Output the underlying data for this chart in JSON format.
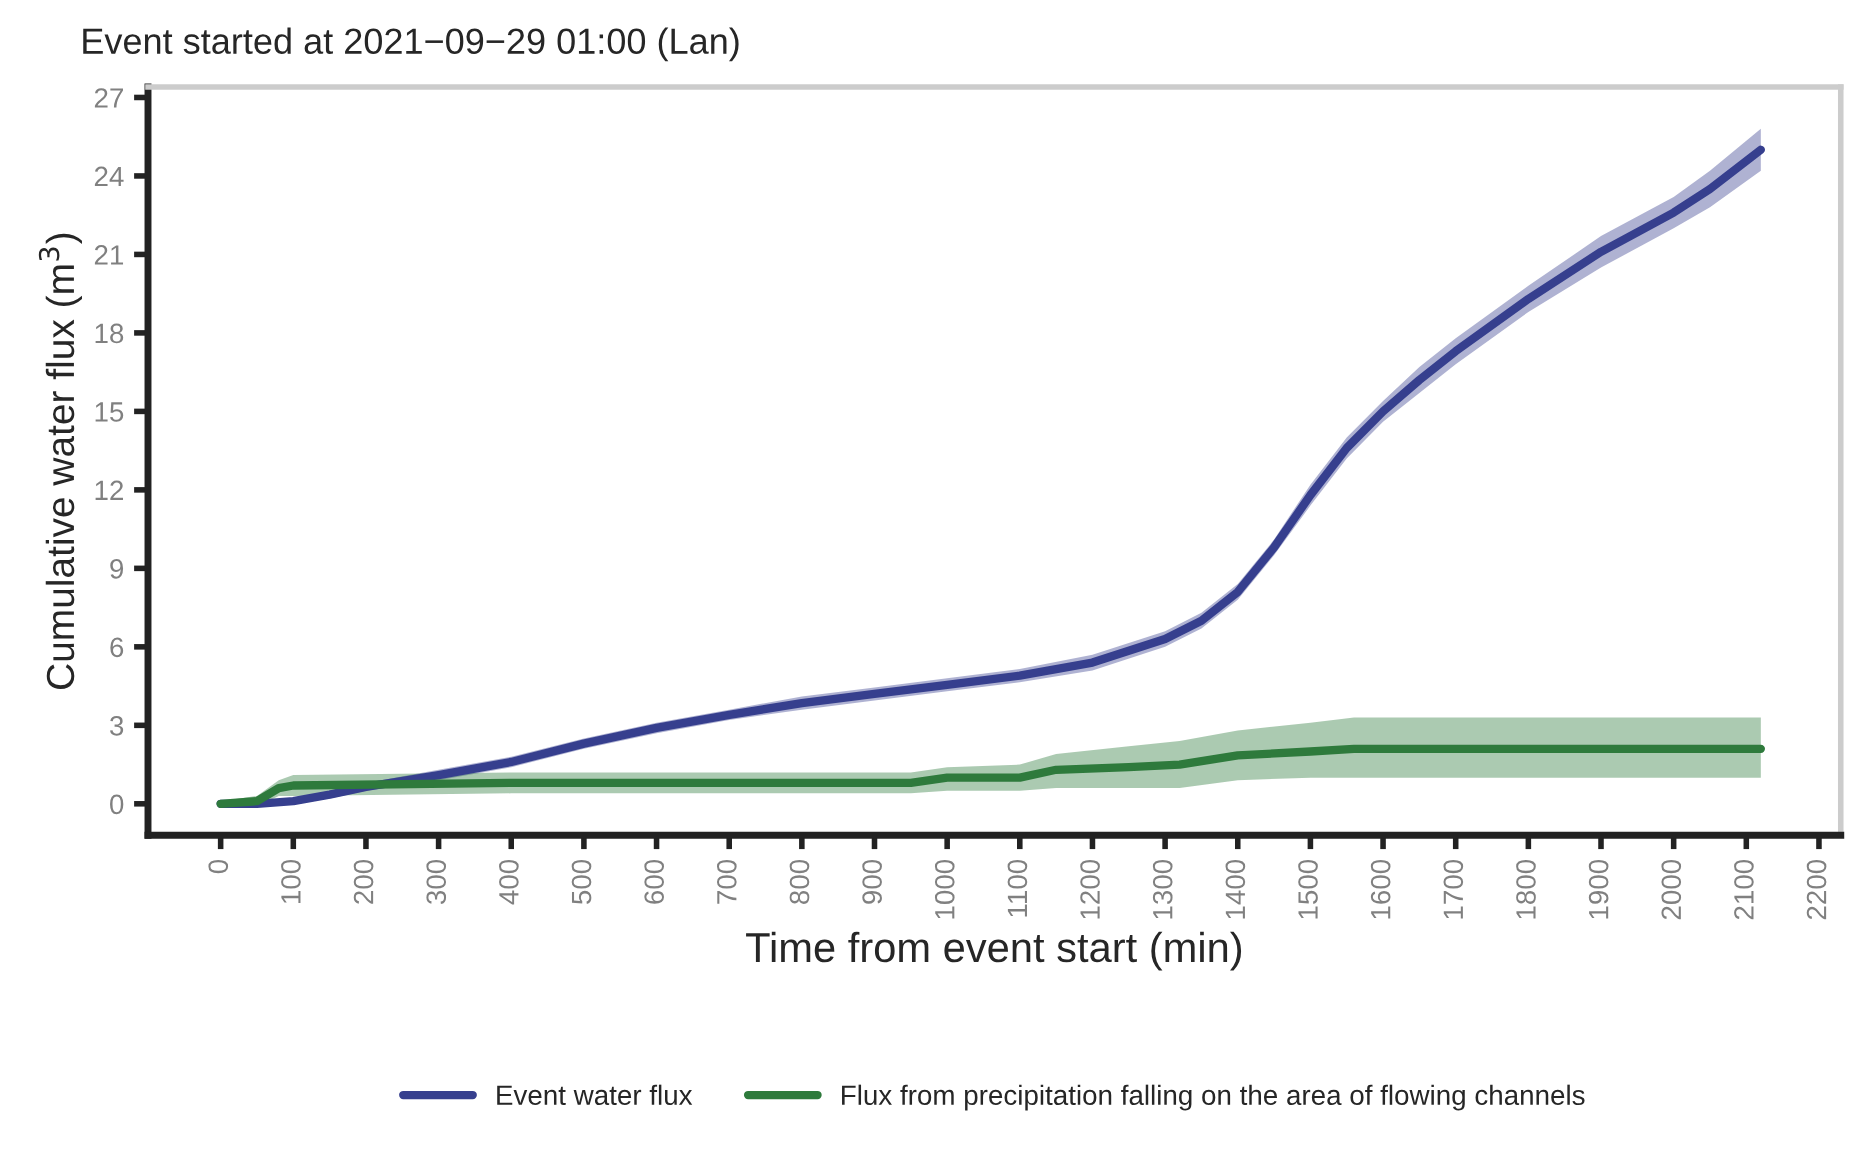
{
  "chart_data": {
    "type": "line",
    "title": "Event started at 2021−09−29 01:00 (Lan)",
    "xlabel": "Time from event start (min)",
    "ylabel": "Cumulative water flux (m$^{3}$)",
    "xlim": [
      -100,
      2230
    ],
    "xticks": [
      0,
      100,
      200,
      300,
      400,
      500,
      600,
      700,
      800,
      900,
      1000,
      1100,
      1200,
      1300,
      1400,
      1500,
      1600,
      1700,
      1800,
      1900,
      2000,
      2100,
      2200
    ],
    "ylim": [
      -1.2,
      27.4
    ],
    "yticks": [
      0,
      3,
      6,
      9,
      12,
      15,
      18,
      21,
      24,
      27
    ],
    "grid": false,
    "legend": "bottom",
    "line_style": "solid",
    "marker": "none",
    "series": [
      {
        "name": "Event water flux",
        "color": "#363f8e",
        "x": [
          0,
          50,
          100,
          150,
          200,
          300,
          400,
          500,
          600,
          700,
          800,
          900,
          1000,
          1100,
          1200,
          1300,
          1350,
          1400,
          1450,
          1500,
          1550,
          1600,
          1650,
          1700,
          1800,
          1900,
          2000,
          2050,
          2120
        ],
        "values": [
          0,
          0,
          0.1,
          0.35,
          0.65,
          1.1,
          1.6,
          2.3,
          2.9,
          3.4,
          3.85,
          4.2,
          4.55,
          4.9,
          5.4,
          6.3,
          7.0,
          8.1,
          9.8,
          11.8,
          13.6,
          15.0,
          16.2,
          17.3,
          19.3,
          21.1,
          22.6,
          23.5,
          25.0
        ],
        "lower": [
          -0.1,
          -0.1,
          0,
          0.2,
          0.5,
          0.9,
          1.4,
          2.1,
          2.7,
          3.2,
          3.6,
          3.95,
          4.3,
          4.65,
          5.1,
          6.0,
          6.7,
          7.8,
          9.5,
          11.4,
          13.2,
          14.6,
          15.7,
          16.8,
          18.8,
          20.5,
          22.0,
          22.8,
          24.2
        ],
        "upper": [
          0.1,
          0.1,
          0.2,
          0.5,
          0.8,
          1.3,
          1.8,
          2.5,
          3.1,
          3.6,
          4.1,
          4.45,
          4.8,
          5.15,
          5.7,
          6.6,
          7.3,
          8.4,
          10.1,
          12.2,
          14.0,
          15.4,
          16.7,
          17.8,
          19.8,
          21.7,
          23.2,
          24.2,
          25.8
        ]
      },
      {
        "name": "Flux from precipitation falling on the area of flowing channels",
        "color": "#2e7a3c",
        "x": [
          0,
          50,
          80,
          100,
          400,
          950,
          1000,
          1100,
          1150,
          1250,
          1320,
          1400,
          1500,
          1560,
          2120
        ],
        "values": [
          0,
          0.1,
          0.6,
          0.7,
          0.8,
          0.8,
          1.0,
          1.0,
          1.3,
          1.4,
          1.5,
          1.85,
          2.0,
          2.1,
          2.1
        ],
        "lower": [
          -0.1,
          -0.1,
          0.3,
          0.3,
          0.4,
          0.4,
          0.5,
          0.5,
          0.6,
          0.6,
          0.6,
          0.9,
          1.0,
          1.0,
          1.0
        ],
        "upper": [
          0.1,
          0.3,
          0.9,
          1.1,
          1.2,
          1.2,
          1.4,
          1.5,
          1.9,
          2.2,
          2.4,
          2.8,
          3.1,
          3.3,
          3.3
        ]
      }
    ]
  }
}
